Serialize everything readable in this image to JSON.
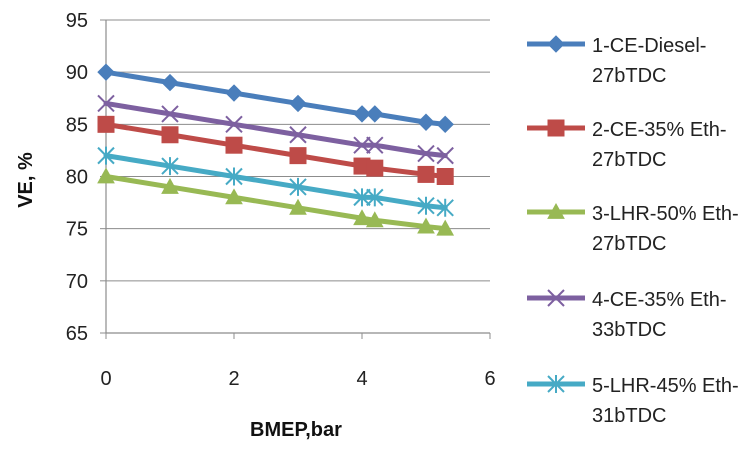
{
  "chart_data": {
    "type": "line",
    "title": "",
    "xlabel": "BMEP,bar",
    "ylabel": "VE, %",
    "xlim": [
      0,
      6
    ],
    "ylim": [
      65,
      95
    ],
    "xticks": [
      0,
      2,
      4,
      6
    ],
    "yticks": [
      65,
      70,
      75,
      80,
      85,
      90,
      95
    ],
    "grid": "horizontal",
    "legend_position": "right",
    "x": [
      0,
      1,
      2,
      3,
      4,
      4.2,
      5,
      5.3
    ],
    "series": [
      {
        "name": "1-CE-Diesel-27bTDC",
        "label_lines": [
          "1-CE-Diesel-",
          "27bTDC"
        ],
        "marker": "diamond",
        "color": "#4a7ebb",
        "values": [
          90,
          89,
          88,
          87,
          86,
          86,
          85.2,
          85
        ]
      },
      {
        "name": "2-CE-35% Eth-27bTDC",
        "label_lines": [
          "2-CE-35% Eth-",
          "27bTDC"
        ],
        "marker": "square",
        "color": "#be4b48",
        "values": [
          85,
          84,
          83,
          82,
          81,
          80.8,
          80.2,
          80
        ]
      },
      {
        "name": "3-LHR-50% Eth-27bTDC",
        "label_lines": [
          "3-LHR-50% Eth-",
          "27bTDC"
        ],
        "marker": "triangle",
        "color": "#98b954",
        "values": [
          80,
          79,
          78,
          77,
          76,
          75.8,
          75.2,
          75
        ]
      },
      {
        "name": "4-CE-35% Eth-33bTDC",
        "label_lines": [
          "4-CE-35% Eth-",
          "33bTDC"
        ],
        "marker": "x",
        "color": "#7d60a0",
        "values": [
          87,
          86,
          85,
          84,
          83,
          83,
          82.2,
          82
        ]
      },
      {
        "name": "5-LHR-45% Eth-31bTDC",
        "label_lines": [
          "5-LHR-45% Eth-",
          "31bTDC"
        ],
        "marker": "asterisk",
        "color": "#46aac5",
        "values": [
          82,
          81,
          80,
          79,
          78,
          78,
          77.2,
          77
        ]
      }
    ]
  }
}
